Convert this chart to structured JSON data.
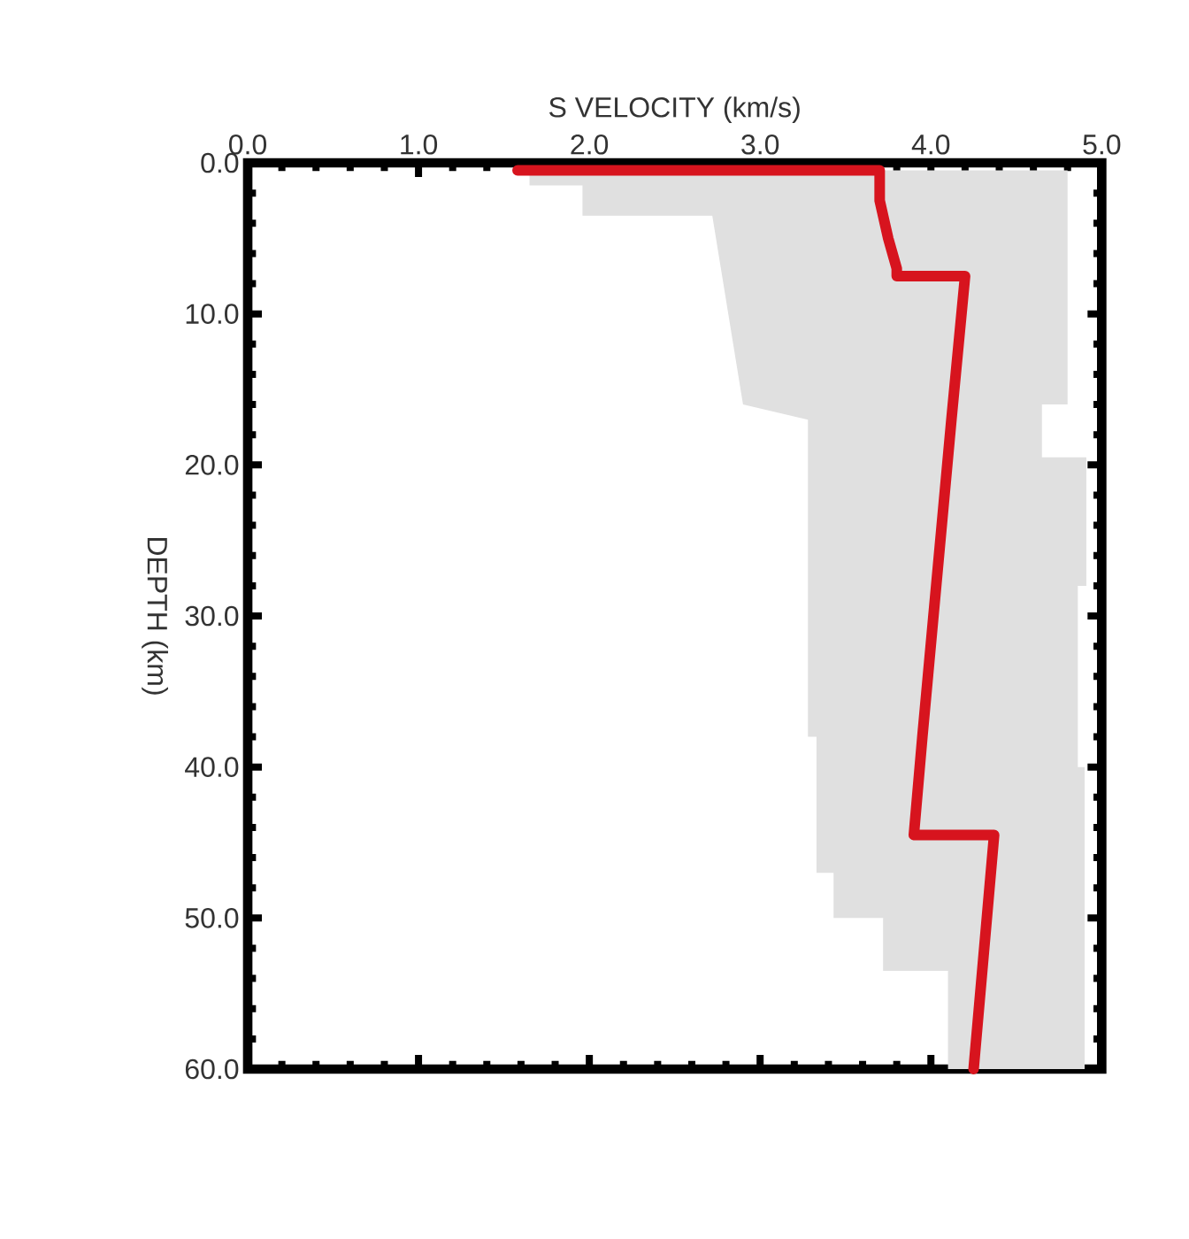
{
  "chart_data": {
    "type": "line",
    "xlabel": "S VELOCITY (km/s)",
    "ylabel": "DEPTH (km)",
    "xlim": [
      0,
      5
    ],
    "ylim": [
      60,
      0
    ],
    "xticks": [
      {
        "value": 0,
        "label": "0.0"
      },
      {
        "value": 1,
        "label": "1.0"
      },
      {
        "value": 2,
        "label": "2.0"
      },
      {
        "value": 3,
        "label": "3.0"
      },
      {
        "value": 4,
        "label": "4.0"
      },
      {
        "value": 5,
        "label": "5.0"
      }
    ],
    "yticks": [
      {
        "value": 0,
        "label": "0.0"
      },
      {
        "value": 10,
        "label": "10.0"
      },
      {
        "value": 20,
        "label": "20.0"
      },
      {
        "value": 30,
        "label": "30.0"
      },
      {
        "value": 40,
        "label": "40.0"
      },
      {
        "value": 50,
        "label": "50.0"
      },
      {
        "value": 60,
        "label": "60.0"
      }
    ],
    "grid": false,
    "series": [
      {
        "type": "area",
        "color": "#e0e0e0",
        "x": [
          1.65,
          1.65,
          1.96,
          1.96,
          2.72,
          2.9,
          3.28,
          3.28,
          3.33,
          3.33,
          3.43,
          3.43,
          3.72,
          3.72,
          4.1,
          4.1,
          4.9,
          4.9,
          4.86,
          4.86,
          4.91,
          4.91,
          4.65,
          4.65,
          4.8,
          4.8
        ],
        "values": [
          0.5,
          1.5,
          1.5,
          3.5,
          3.5,
          16,
          17,
          38,
          38,
          47,
          47,
          50,
          50,
          53.5,
          53.5,
          60,
          60,
          40,
          40,
          28,
          28,
          19.5,
          19.5,
          16,
          16,
          0.5
        ]
      },
      {
        "color": "#d7141e",
        "x": [
          1.58,
          3.7,
          3.7,
          3.75,
          3.8,
          3.8,
          4.2,
          4.12,
          3.95,
          3.9,
          3.9,
          4.37,
          4.25
        ],
        "values": [
          0.5,
          0.5,
          2.5,
          5,
          7,
          7.5,
          7.5,
          17,
          38,
          44.5,
          44.5,
          44.5,
          60
        ]
      }
    ]
  }
}
